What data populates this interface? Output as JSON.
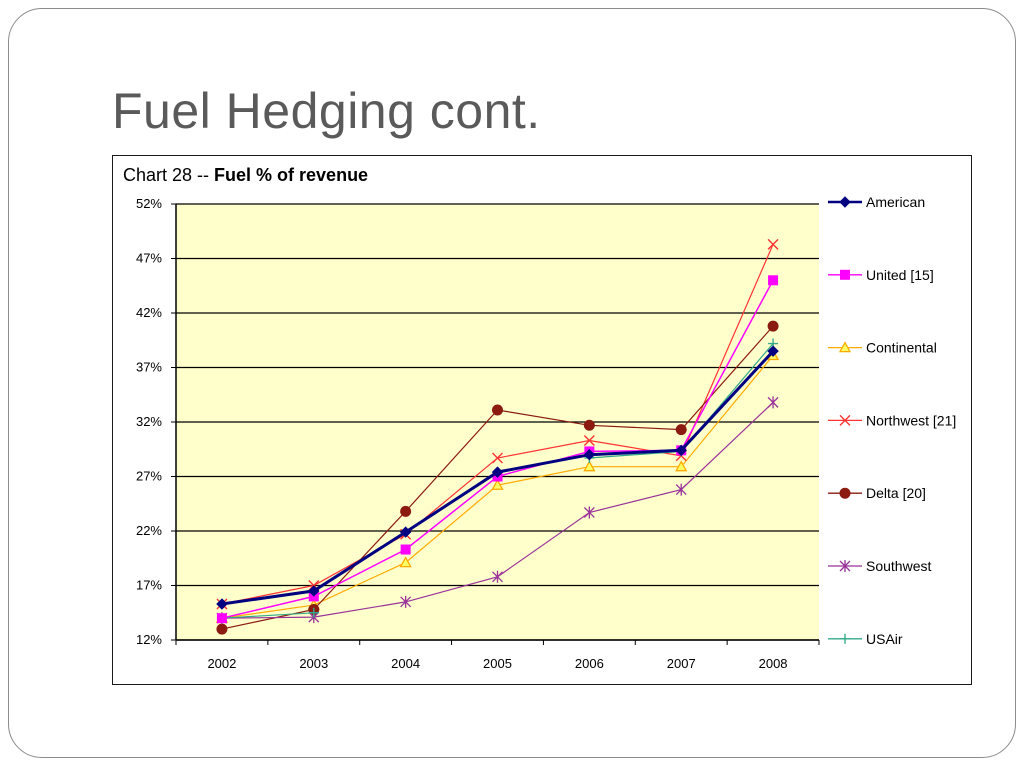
{
  "slide": {
    "title": "Fuel Hedging cont."
  },
  "chart_data": {
    "type": "line",
    "title_prefix": "Chart 28 -- ",
    "title_main": "Fuel % of revenue",
    "xlabel": "",
    "ylabel": "",
    "categories": [
      "2002",
      "2003",
      "2004",
      "2005",
      "2006",
      "2007",
      "2008"
    ],
    "ylim": [
      12,
      52
    ],
    "yticks": [
      12,
      17,
      22,
      27,
      32,
      37,
      42,
      47,
      52
    ],
    "ytick_labels": [
      "12%",
      "17%",
      "22%",
      "27%",
      "32%",
      "37%",
      "42%",
      "47%",
      "52%"
    ],
    "grid": true,
    "plot_background": "#ffffcc",
    "legend_position": "right",
    "series": [
      {
        "name": "American",
        "color": "#000080",
        "marker": "diamond",
        "width": 3,
        "values": [
          15.3,
          16.5,
          21.9,
          27.4,
          29.0,
          29.4,
          38.5
        ]
      },
      {
        "name": "United [15]",
        "color": "#ff00ff",
        "marker": "square",
        "width": 1.5,
        "values": [
          14.0,
          16.0,
          20.3,
          27.0,
          29.3,
          29.4,
          45.0
        ]
      },
      {
        "name": "Continental",
        "color": "#ffaa00",
        "marker": "triangle",
        "width": 1.2,
        "values": [
          14.0,
          15.2,
          19.1,
          26.2,
          27.9,
          27.9,
          38.1
        ]
      },
      {
        "name": "Northwest [21]",
        "color": "#ff3333",
        "marker": "x",
        "width": 1.2,
        "values": [
          15.3,
          17.0,
          21.7,
          28.7,
          30.3,
          28.9,
          48.3
        ]
      },
      {
        "name": "Delta [20]",
        "color": "#8b1a10",
        "marker": "circle",
        "width": 1.2,
        "values": [
          13.0,
          14.8,
          23.8,
          33.1,
          31.7,
          31.3,
          40.8
        ]
      },
      {
        "name": "Southwest",
        "color": "#993399",
        "marker": "asterisk",
        "width": 1.2,
        "values": [
          14.0,
          14.1,
          15.5,
          17.8,
          23.7,
          25.8,
          33.8
        ]
      },
      {
        "name": "USAir",
        "color": "#33aa88",
        "marker": "plus",
        "width": 1.2,
        "values": [
          14.0,
          14.5,
          null,
          null,
          28.7,
          29.3,
          39.2
        ]
      }
    ]
  }
}
